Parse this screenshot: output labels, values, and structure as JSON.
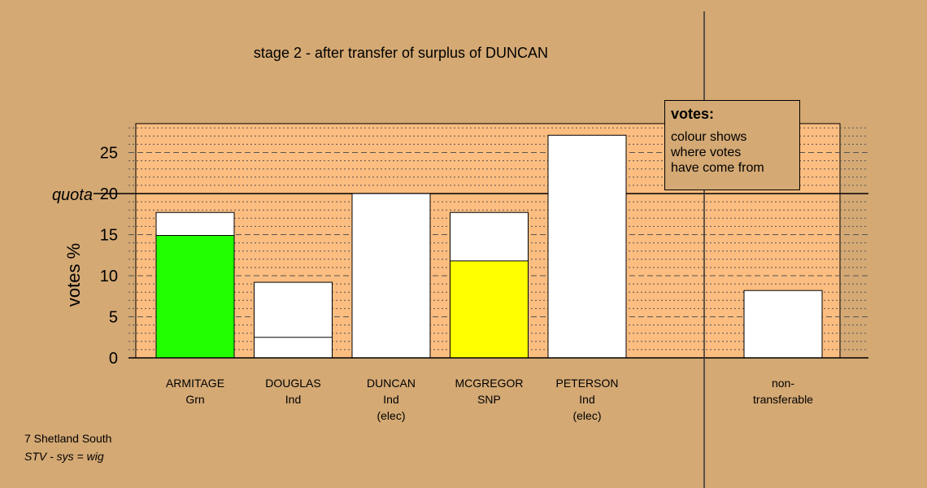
{
  "chart_data": {
    "type": "bar",
    "title": "stage 2 - after transfer of surplus of DUNCAN",
    "ylabel": "votes %",
    "ylim": [
      0,
      28
    ],
    "yticks": [
      0,
      5,
      10,
      15,
      20,
      25
    ],
    "quota_label": "quota",
    "quota_value": 20,
    "categories": [
      {
        "line1": "ARMITAGE",
        "line2": "Grn",
        "line3": ""
      },
      {
        "line1": "DOUGLAS",
        "line2": "Ind",
        "line3": ""
      },
      {
        "line1": "DUNCAN",
        "line2": "Ind",
        "line3": "(elec)"
      },
      {
        "line1": "MCGREGOR",
        "line2": "SNP",
        "line3": ""
      },
      {
        "line1": "PETERSON",
        "line2": "Ind",
        "line3": "(elec)"
      },
      {
        "line1": "",
        "line2": "",
        "line3": ""
      },
      {
        "line1": "non-",
        "line2": "transferable",
        "line3": ""
      }
    ],
    "bars": [
      {
        "total": 17.7,
        "base": 14.9,
        "base_color": "#22ff00"
      },
      {
        "total": 9.2,
        "base": 2.5,
        "base_color": "#ffffff"
      },
      {
        "total": 20.0,
        "base": 0,
        "base_color": "#ffffff"
      },
      {
        "total": 17.7,
        "base": 11.8,
        "base_color": "#ffff00"
      },
      {
        "total": 27.1,
        "base": 0,
        "base_color": "#ffffff"
      },
      null,
      {
        "total": 8.2,
        "base": 0,
        "base_color": "#ffffff"
      }
    ],
    "colors": {
      "background": "#d4a974",
      "plot_area": "#fcbd80"
    }
  },
  "legend": {
    "title": "votes:",
    "lines": [
      "colour shows",
      "where votes",
      "have come from"
    ]
  },
  "footer": {
    "constituency": "7 Shetland South",
    "system": "STV - sys = wig"
  }
}
